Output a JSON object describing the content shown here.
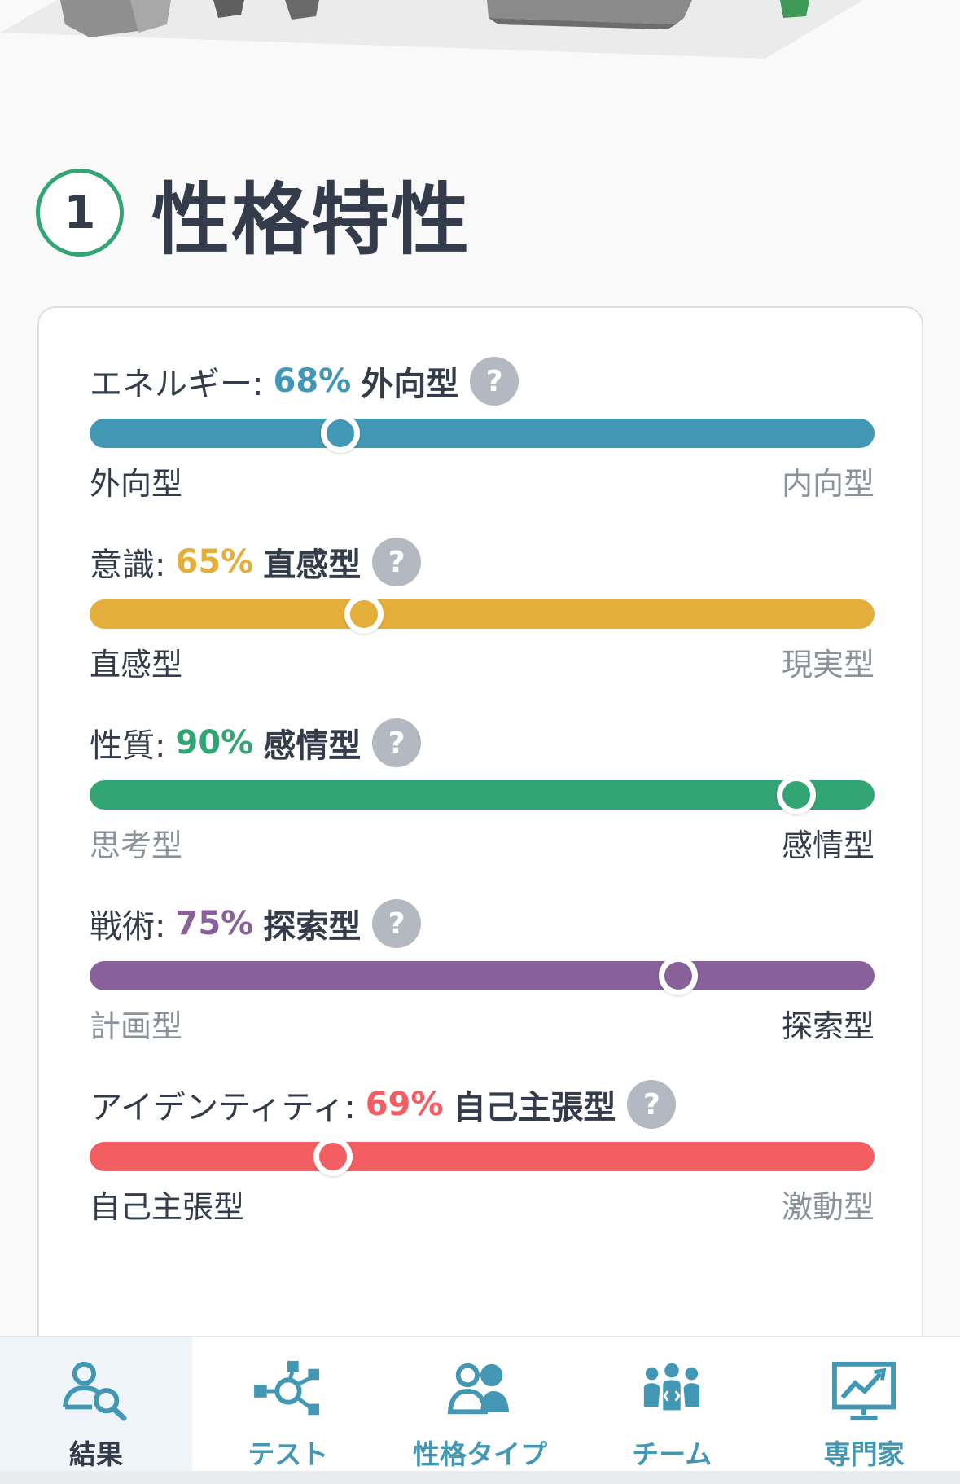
{
  "section": {
    "number": "1",
    "title": "性格特性"
  },
  "traits": [
    {
      "name": "エネルギー:",
      "percent": "68%",
      "percent_value": 0.32,
      "type": "外向型",
      "left": "外向型",
      "right": "内向型",
      "active_side": "left",
      "color": "#4298b4"
    },
    {
      "name": "意識:",
      "percent": "65%",
      "percent_value": 0.35,
      "type": "直感型",
      "left": "直感型",
      "right": "現実型",
      "active_side": "left",
      "color": "#e4ae3a"
    },
    {
      "name": "性質:",
      "percent": "90%",
      "percent_value": 0.9,
      "type": "感情型",
      "left": "思考型",
      "right": "感情型",
      "active_side": "right",
      "color": "#33a474"
    },
    {
      "name": "戦術:",
      "percent": "75%",
      "percent_value": 0.75,
      "type": "探索型",
      "left": "計画型",
      "right": "探索型",
      "active_side": "right",
      "color": "#88619a"
    },
    {
      "name": "アイデンティティ:",
      "percent": "69%",
      "percent_value": 0.31,
      "type": "自己主張型",
      "left": "自己主張型",
      "right": "激動型",
      "active_side": "left",
      "color": "#f25e62"
    }
  ],
  "help_glyph": "?",
  "nav": {
    "items": [
      {
        "label": "結果",
        "icon": "results-icon",
        "active": true
      },
      {
        "label": "テスト",
        "icon": "test-network-icon",
        "active": false
      },
      {
        "label": "性格タイプ",
        "icon": "personality-types-icon",
        "active": false
      },
      {
        "label": "チーム",
        "icon": "team-icon",
        "active": false
      },
      {
        "label": "専門家",
        "icon": "professional-chart-icon",
        "active": false
      }
    ]
  },
  "colors": {
    "accent_green": "#33a474",
    "nav_blue": "#4298b4",
    "text_dark": "#343c4b",
    "text_muted": "#8b929c"
  }
}
